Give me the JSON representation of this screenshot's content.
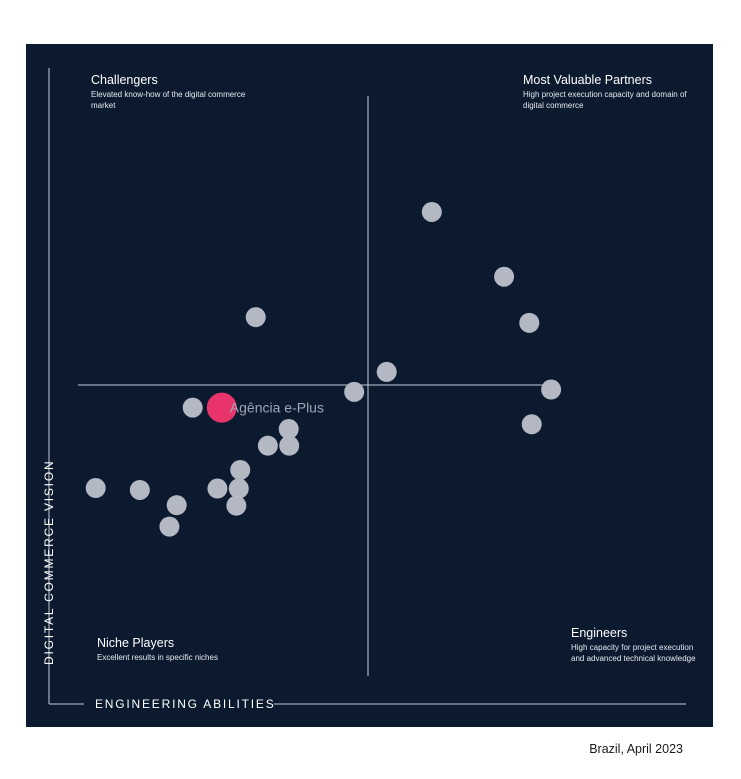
{
  "chart_data": {
    "type": "scatter",
    "xlabel": "ENGINEERING ABILITIES",
    "ylabel": "DIGITAL COMMERCE VISION",
    "xlim": [
      0,
      100
    ],
    "ylim": [
      0,
      100
    ],
    "quadrants": {
      "top_left": {
        "title": "Challengers",
        "description": "Elevated know-how of the digital commerce market"
      },
      "top_right": {
        "title": "Most Valuable Partners",
        "description": "High project execution capacity and domain of digital commerce"
      },
      "bottom_left": {
        "title": "Niche Players",
        "description": "Excellent results in specific niches"
      },
      "bottom_right": {
        "title": "Engineers",
        "description": "High capacity for project execution and advanced technical knowledge"
      }
    },
    "points": [
      {
        "x": 71.3,
        "y": 83.2
      },
      {
        "x": 86.2,
        "y": 69.6
      },
      {
        "x": 91.4,
        "y": 59.9
      },
      {
        "x": 35.0,
        "y": 61.1
      },
      {
        "x": 62.0,
        "y": 49.6
      },
      {
        "x": 55.3,
        "y": 45.4
      },
      {
        "x": 95.9,
        "y": 45.9
      },
      {
        "x": 91.9,
        "y": 38.6
      },
      {
        "x": 22.0,
        "y": 42.1
      },
      {
        "x": 41.8,
        "y": 37.6
      },
      {
        "x": 37.5,
        "y": 34.1
      },
      {
        "x": 41.9,
        "y": 34.1
      },
      {
        "x": 31.8,
        "y": 29.0
      },
      {
        "x": 2.0,
        "y": 25.2
      },
      {
        "x": 11.1,
        "y": 24.8
      },
      {
        "x": 27.1,
        "y": 25.1
      },
      {
        "x": 31.5,
        "y": 25.1
      },
      {
        "x": 18.7,
        "y": 21.6
      },
      {
        "x": 31.0,
        "y": 21.5
      },
      {
        "x": 17.2,
        "y": 17.1
      },
      {
        "x": 28.0,
        "y": 42.1,
        "label": "Agência e-Plus",
        "highlight": true
      }
    ],
    "highlight_color": "#e8346a",
    "point_color": "#b3b8c2",
    "background_color": "#0c1a30"
  },
  "footer": "Brazil, April 2023"
}
